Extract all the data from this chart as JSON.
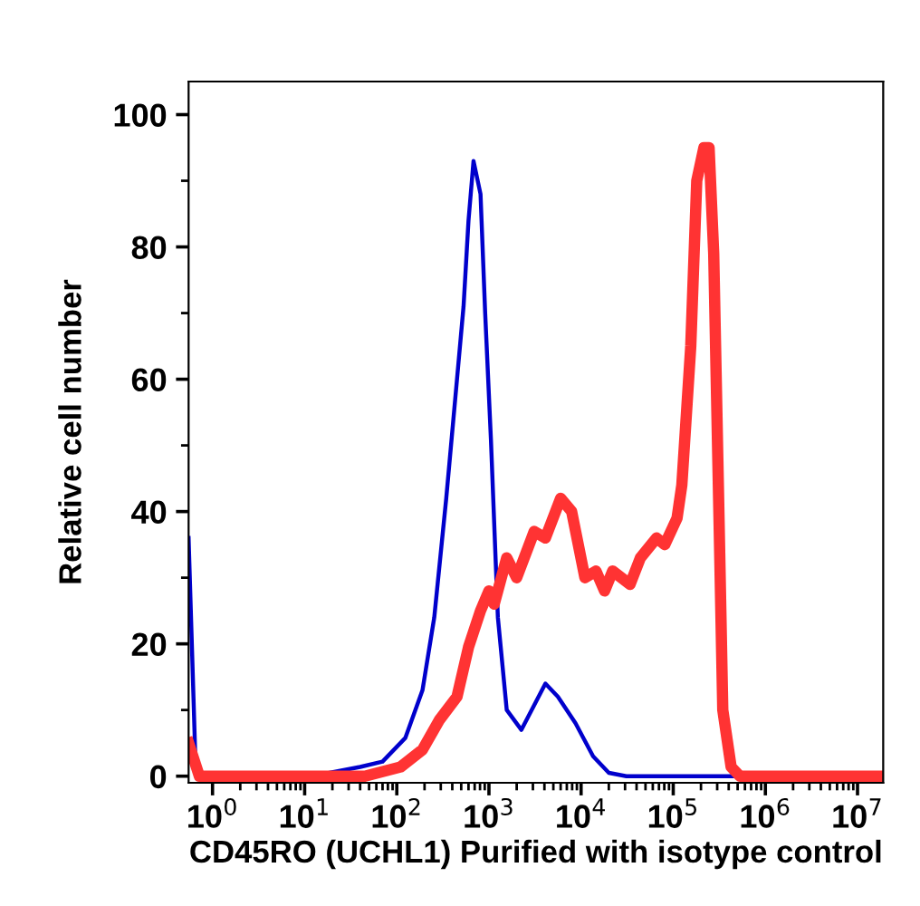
{
  "chart_data": {
    "type": "line",
    "xlabel": "CD45RO (UCHL1) Purified with isotype control",
    "ylabel": "Relative cell number",
    "log": "x",
    "xlim": [
      0.55,
      19000000
    ],
    "xticks": [
      {
        "value": 1,
        "label": "10$^{0}$"
      },
      {
        "value": 10,
        "label": "10$^{1}$"
      },
      {
        "value": 100,
        "label": "10$^{2}$"
      },
      {
        "value": 1000,
        "label": "10$^{3}$"
      },
      {
        "value": 10000,
        "label": "10$^{4}$"
      },
      {
        "value": 100000,
        "label": "10$^{5}$"
      },
      {
        "value": 1000000,
        "label": "10$^{6}$"
      },
      {
        "value": 10000000,
        "label": "10$^{7}$"
      }
    ],
    "ylim": [
      -1,
      105
    ],
    "yticks": [
      0,
      20,
      40,
      60,
      80,
      100
    ],
    "grid": false,
    "legend": false,
    "marker": "none",
    "line_style": "solid",
    "series": [
      {
        "color": "#0000cc",
        "x": [
          0.55,
          0.66,
          12,
          40,
          70,
          124,
          190,
          255,
          344,
          450,
          530,
          600,
          680,
          810,
          910,
          1050,
          1250,
          1560,
          2250,
          4100,
          5600,
          8700,
          13500,
          20000,
          31000,
          19000000
        ],
        "values": [
          36,
          0,
          0,
          1.4,
          2.2,
          5.8,
          13,
          24,
          42,
          60,
          71,
          84,
          93,
          88,
          70,
          51,
          24,
          10,
          7,
          14,
          12,
          8,
          3,
          0.5,
          0,
          0
        ]
      },
      {
        "color": "#ff3333",
        "x": [
          0.55,
          0.72,
          45,
          110,
          190,
          290,
          450,
          600,
          810,
          1000,
          1140,
          1560,
          2000,
          3100,
          4100,
          6000,
          7900,
          11000,
          14500,
          18000,
          22000,
          34000,
          44000,
          66000,
          81000,
          110000,
          124000,
          155000,
          180000,
          215000,
          245000,
          275000,
          315000,
          345000,
          425000,
          530000,
          19000000
        ],
        "values": [
          5,
          0,
          0,
          1.4,
          4,
          8.5,
          12,
          19.5,
          25,
          28,
          26,
          33,
          30,
          37,
          36,
          42,
          40,
          30,
          31,
          28,
          31,
          29,
          33,
          36,
          35,
          39,
          44,
          65,
          90,
          95,
          95,
          79,
          38,
          10,
          1.4,
          0,
          0
        ]
      }
    ]
  }
}
